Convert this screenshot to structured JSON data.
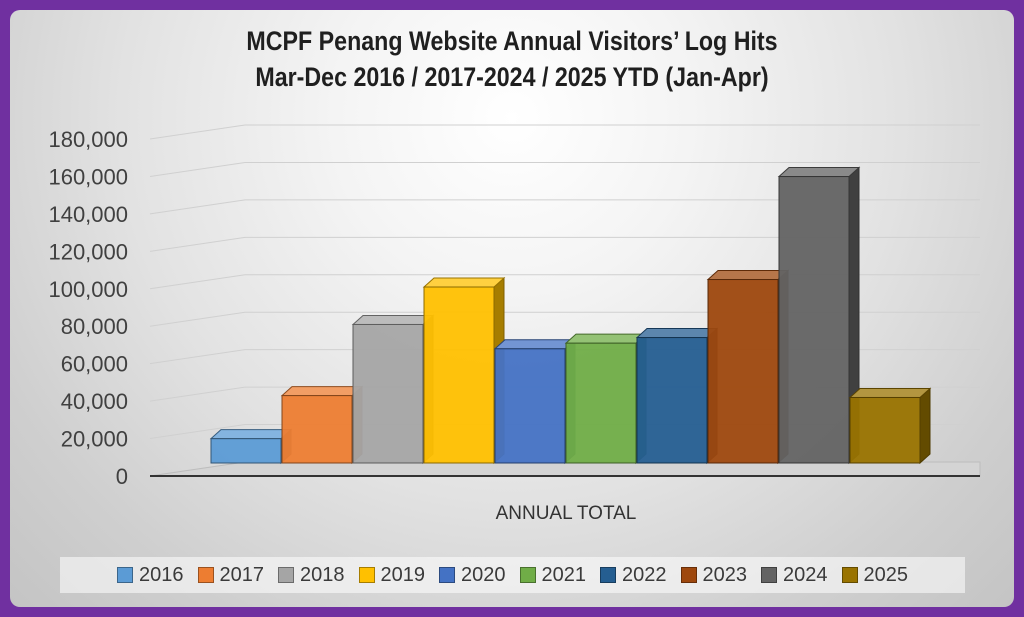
{
  "chart_data": {
    "type": "bar",
    "title": "MCPF Penang Website Annual Visitors’ Log Hits",
    "subtitle": "Mar-Dec 2016 / 2017-2024 / 2025 YTD (Jan-Apr)",
    "xlabel": "ANNUAL TOTAL",
    "ylabel": "",
    "categories": [
      "ANNUAL TOTAL"
    ],
    "ylim": [
      0,
      180000
    ],
    "yticks": [
      "0",
      "20,000",
      "40,000",
      "60,000",
      "80,000",
      "100,000",
      "120,000",
      "140,000",
      "160,000",
      "180,000"
    ],
    "grid": true,
    "legend_position": "bottom",
    "series": [
      {
        "name": "2016",
        "values": [
          13000
        ],
        "color": "#5b9bd5"
      },
      {
        "name": "2017",
        "values": [
          36000
        ],
        "color": "#ed7d31"
      },
      {
        "name": "2018",
        "values": [
          74000
        ],
        "color": "#a5a5a5"
      },
      {
        "name": "2019",
        "values": [
          94000
        ],
        "color": "#ffc000"
      },
      {
        "name": "2020",
        "values": [
          61000
        ],
        "color": "#4472c4"
      },
      {
        "name": "2021",
        "values": [
          64000
        ],
        "color": "#70ad47"
      },
      {
        "name": "2022",
        "values": [
          67000
        ],
        "color": "#255e91"
      },
      {
        "name": "2023",
        "values": [
          98000
        ],
        "color": "#9e480e"
      },
      {
        "name": "2024",
        "values": [
          153000
        ],
        "color": "#636363"
      },
      {
        "name": "2025",
        "values": [
          35000
        ],
        "color": "#997300"
      }
    ]
  }
}
